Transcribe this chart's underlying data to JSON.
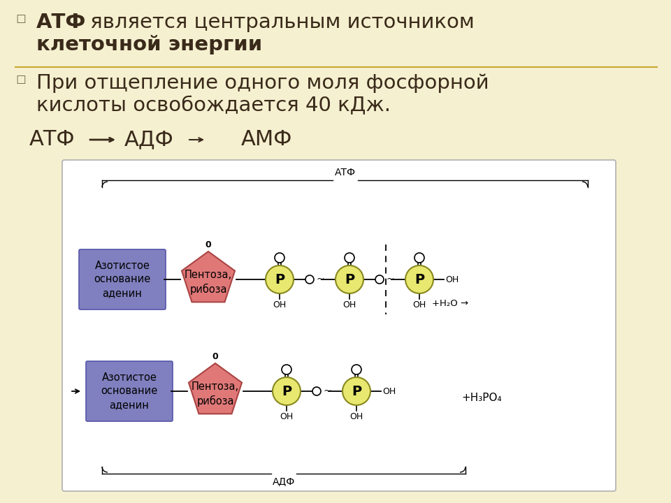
{
  "slide_bg": "#f5f0d0",
  "diagram_bg": "#ffffff",
  "purple_color": "#8080c0",
  "pink_color": "#e07878",
  "yellow_color": "#e8e870",
  "separator_color": "#c8a830",
  "text_color": "#3a2a1a",
  "atf_label": "АТФ",
  "adf_label": "АДФ",
  "nitrogen_label": "Азотистое\nоснование\nаденин",
  "pentose_label": "Пентоза,\nрибоза",
  "p_label": "P",
  "h2o_label": "+H₂O →",
  "h3po4_label": "+H₃PO₄",
  "line1a_bold": "АТФ",
  "line1b": " является центральным источником",
  "line2_bold": "клеточной энергии",
  "line2_end": ".",
  "line3": "При отщепление одного моля фосфорной",
  "line4": "кислоты освобождается 40 кДж.",
  "atf_arrow": "АТФ",
  "adf_arrow": "АДФ",
  "amf_arrow": "АМФ"
}
